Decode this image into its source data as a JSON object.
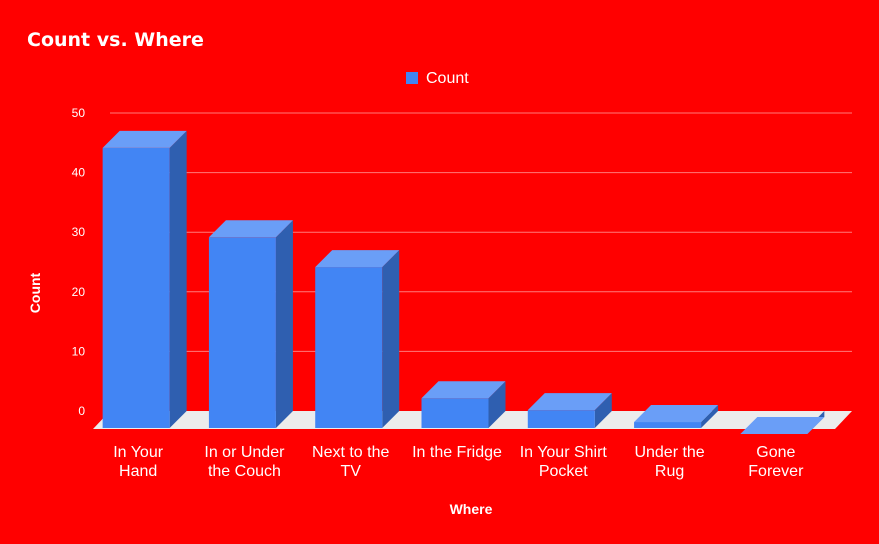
{
  "chart_data": {
    "type": "bar",
    "title": "Count vs. Where",
    "xlabel": "Where",
    "ylabel": "Count",
    "categories": [
      [
        "In Your",
        "Hand"
      ],
      [
        "In or Under",
        "the Couch"
      ],
      [
        "Next to the",
        "TV"
      ],
      [
        "In the Fridge"
      ],
      [
        "In Your Shirt",
        "Pocket"
      ],
      [
        "Under the",
        "Rug"
      ],
      [
        "Gone",
        "Forever"
      ]
    ],
    "series": [
      {
        "name": "Count",
        "values": [
          47,
          32,
          27,
          5,
          3,
          1,
          -1
        ]
      }
    ],
    "yticks": [
      "0",
      "10",
      "20",
      "30",
      "40",
      "50"
    ],
    "ylim": [
      0,
      50
    ],
    "grid": true,
    "legend": "top-center",
    "three_d": true,
    "colors": {
      "background": "#ff0000",
      "bar_front": "#4285f4",
      "bar_top": "#6a9ef7",
      "bar_side": "#2f5fb0",
      "floor": "#ececec",
      "grid": "#ff7a7a",
      "text": "#ffffff"
    }
  }
}
